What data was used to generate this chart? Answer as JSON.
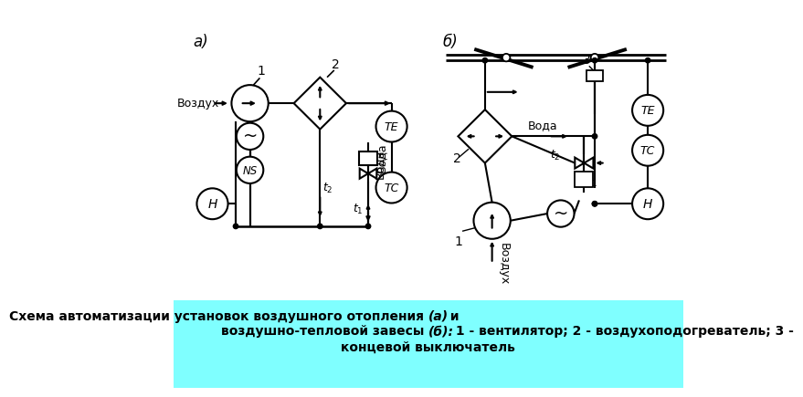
{
  "bg_color": "#ffffff",
  "caption_bg": "#7fffff",
  "title_a": "а)",
  "title_b": "б)",
  "caption_line1": "Схема автоматизации установок воздушного отопления ",
  "caption_italic1": "(а)",
  "caption_middle": " и",
  "caption_line2": "воздушно-тепловой завесы ",
  "caption_italic2": "(б):",
  "caption_end": " 1 - вентилятор; 2 - воздухоподогреватель; 3 -",
  "caption_line3": "концевой выключатель"
}
